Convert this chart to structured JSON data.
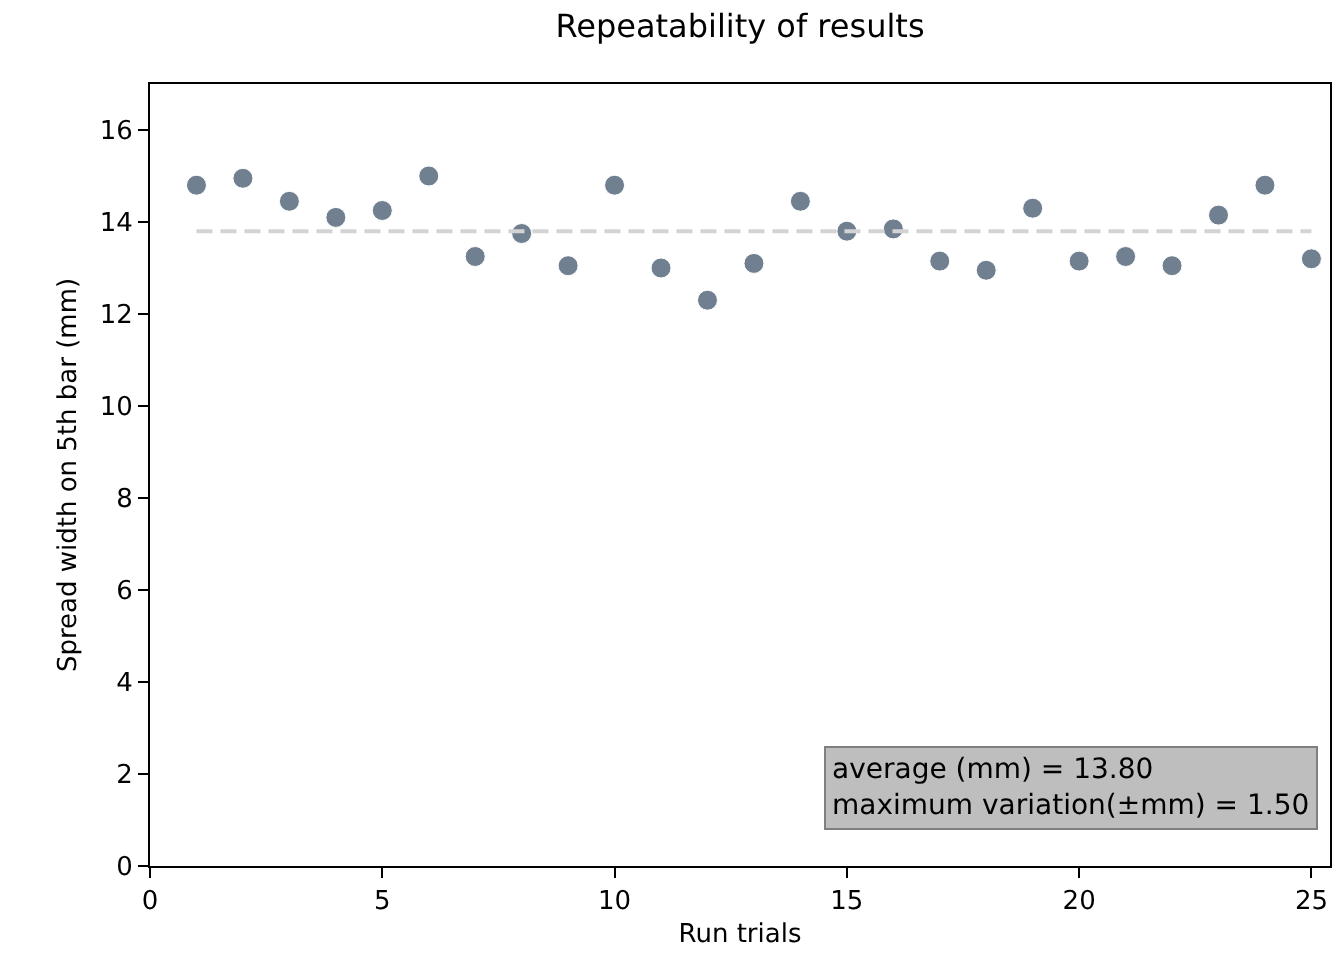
{
  "chart_data": {
    "type": "scatter",
    "title": "Repeatability of results",
    "xlabel": "Run trials",
    "ylabel": "Spread width on 5th bar (mm)",
    "x": [
      1,
      2,
      3,
      4,
      5,
      6,
      7,
      8,
      9,
      10,
      11,
      12,
      13,
      14,
      15,
      16,
      17,
      18,
      19,
      20,
      21,
      22,
      23,
      24,
      25
    ],
    "series": [
      {
        "color": "#708090",
        "values": [
          14.8,
          14.95,
          14.45,
          14.1,
          14.25,
          15.0,
          13.25,
          13.75,
          13.05,
          14.8,
          13.0,
          12.3,
          13.1,
          14.45,
          13.8,
          13.85,
          13.15,
          12.95,
          14.3,
          13.15,
          13.25,
          13.05,
          14.15,
          14.8,
          13.2
        ]
      },
      {
        "type": "line",
        "color": "#d3d3d3",
        "line_style": "dashed",
        "marker": "none",
        "x": [
          1,
          25
        ],
        "values": [
          13.8,
          13.8
        ]
      }
    ],
    "marker": "circle",
    "xlim": [
      0,
      25.4
    ],
    "ylim": [
      0,
      17
    ],
    "xticks": [
      0,
      5,
      10,
      15,
      20,
      25
    ],
    "yticks": [
      0,
      2,
      4,
      6,
      8,
      10,
      12,
      14,
      16
    ],
    "grid": false,
    "annotations": [
      "average (mm) = 13.80\nmaximum variation(±mm) = 1.50"
    ]
  }
}
